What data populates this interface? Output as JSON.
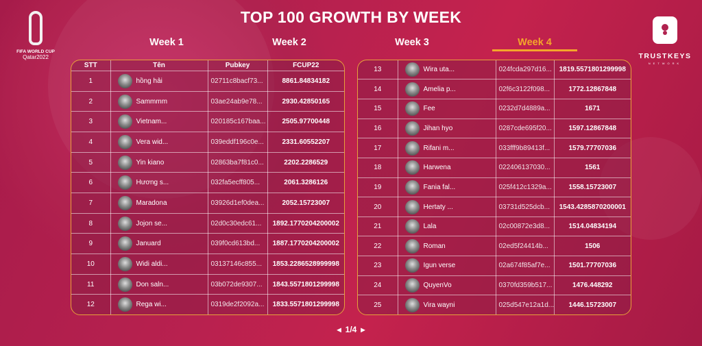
{
  "title": "TOP 100 GROWTH BY WEEK",
  "tabs": [
    {
      "label": "Week 1",
      "active": false
    },
    {
      "label": "Week 2",
      "active": false
    },
    {
      "label": "Week 3",
      "active": false
    },
    {
      "label": "Week 4",
      "active": true
    }
  ],
  "accent": "#f4a62a",
  "logo_left": {
    "line1": "FIFA WORLD CUP",
    "line2": "Qatar2022"
  },
  "logo_right": {
    "line1": "TRUSTKEYS",
    "line2": "NETWORK"
  },
  "columns": [
    "STT",
    "Tên",
    "Pubkey",
    "FCUP22"
  ],
  "left_rows": [
    [
      "1",
      "hồng hải",
      "02711c8bacf73...",
      "8861.84834182"
    ],
    [
      "2",
      "Sammmm",
      "03ae24ab9e78...",
      "2930.42850165"
    ],
    [
      "3",
      "Vietnam...",
      "020185c167baa...",
      "2505.97700448"
    ],
    [
      "4",
      "Vera wid...",
      "039eddf196c0e...",
      "2331.60552207"
    ],
    [
      "5",
      "Yin kiano",
      "02863ba7f81c0...",
      "2202.2286529"
    ],
    [
      "6",
      "Hương s...",
      "032fa5ecff805...",
      "2061.3286126"
    ],
    [
      "7",
      "Maradona",
      "03926d1ef0dea...",
      "2052.15723007"
    ],
    [
      "8",
      "Jojon se...",
      "02d0c30edc61...",
      "1892.1770204200002"
    ],
    [
      "9",
      "Januard",
      "039f0cd613bd...",
      "1887.1770204200002"
    ],
    [
      "10",
      "Widi aldi...",
      "03137146c855...",
      "1853.2286528999998"
    ],
    [
      "11",
      "Don saln...",
      "03b072de9307...",
      "1843.5571801299998"
    ],
    [
      "12",
      "Rega wi...",
      "0319de2f2092a...",
      "1833.5571801299998"
    ]
  ],
  "right_rows": [
    [
      "13",
      "Wira uta...",
      "024fcda297d16...",
      "1819.5571801299998"
    ],
    [
      "14",
      "Amelia p...",
      "02f6c3122f098...",
      "1772.12867848"
    ],
    [
      "15",
      "Fee",
      "0232d7d4889a...",
      "1671"
    ],
    [
      "16",
      "Jihan hyo",
      "0287cde695f20...",
      "1597.12867848"
    ],
    [
      "17",
      "Rifani m...",
      "033fff9b89413f...",
      "1579.77707036"
    ],
    [
      "18",
      "Harwena",
      "022406137030...",
      "1561"
    ],
    [
      "19",
      "Fania fal...",
      "025f412c1329a...",
      "1558.15723007"
    ],
    [
      "20",
      "Hertaty ...",
      "03731d525dcb...",
      "1543.4285870200001"
    ],
    [
      "21",
      "Lala",
      "02c00872e3d8...",
      "1514.04834194"
    ],
    [
      "22",
      "Roman",
      "02ed5f24414b...",
      "1506"
    ],
    [
      "23",
      "Igun verse",
      "02a674f85af7e...",
      "1501.77707036"
    ],
    [
      "24",
      "QuyenVo",
      "0370fd359b517...",
      "1476.448292"
    ],
    [
      "25",
      "Vira wayni",
      "025d547e12a1d...",
      "1446.15723007"
    ]
  ],
  "pager": {
    "prev_icon": "caret-left-icon",
    "label": "1/4",
    "next_icon": "caret-right-icon"
  }
}
